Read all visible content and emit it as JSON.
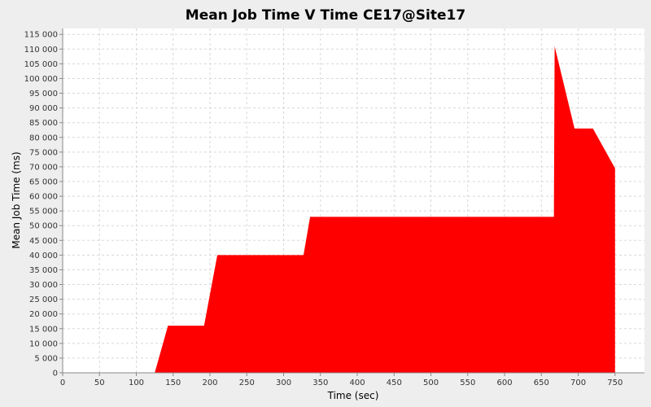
{
  "chart_data": {
    "type": "area",
    "title": "Mean Job Time V Time CE17@Site17",
    "xlabel": "Time (sec)",
    "ylabel": "Mean Job Time (ms)",
    "xlim": [
      0,
      790
    ],
    "ylim": [
      0,
      117000
    ],
    "grid": true,
    "legend": "none",
    "x_ticks": [
      0,
      50,
      100,
      150,
      200,
      250,
      300,
      350,
      400,
      450,
      500,
      550,
      600,
      650,
      700,
      750
    ],
    "x_tick_labels": [
      "0",
      "50",
      "100",
      "150",
      "200",
      "250",
      "300",
      "350",
      "400",
      "450",
      "500",
      "550",
      "600",
      "650",
      "700",
      "750"
    ],
    "y_ticks": [
      0,
      5000,
      10000,
      15000,
      20000,
      25000,
      30000,
      35000,
      40000,
      45000,
      50000,
      55000,
      60000,
      65000,
      70000,
      75000,
      80000,
      85000,
      90000,
      95000,
      100000,
      105000,
      110000,
      115000
    ],
    "y_tick_labels": [
      "0",
      "5 000",
      "10 000",
      "15 000",
      "20 000",
      "25 000",
      "30 000",
      "35 000",
      "40 000",
      "45 000",
      "50 000",
      "55 000",
      "60 000",
      "65 000",
      "70 000",
      "75 000",
      "80 000",
      "85 000",
      "90 000",
      "95 000",
      "100 000",
      "105 000",
      "110 000",
      "115 000"
    ],
    "series": [
      {
        "color": "#ff0000",
        "x": [
          125,
          143,
          192,
          210,
          327,
          336,
          667,
          668,
          695,
          720,
          750,
          750
        ],
        "y": [
          0,
          16000,
          16000,
          40000,
          40000,
          53000,
          53000,
          111000,
          83000,
          83000,
          69500,
          0
        ]
      }
    ]
  },
  "colors": {
    "plot_background": "#ffffff",
    "page_background": "#eeeeee",
    "grid": "#d8d8d8",
    "axis": "#888888",
    "text": "#000000"
  }
}
